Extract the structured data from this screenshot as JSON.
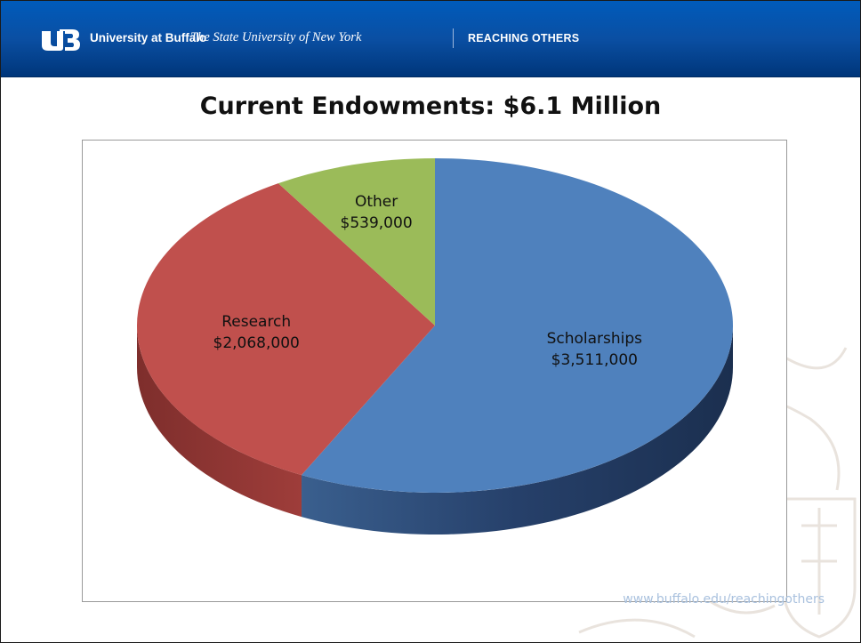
{
  "header": {
    "university": "University at Buffalo",
    "subtitle": "The State University of New York",
    "tagline": "REACHING OTHERS",
    "logo_icon": "ub-logo-icon",
    "background_color": "#005bbb"
  },
  "footer": {
    "url": "www.buffalo.edu/reachingothers"
  },
  "chart_data": {
    "type": "pie",
    "title": "Current Endowments:  $6.1 Million",
    "style": "3d",
    "slices": [
      {
        "name": "Scholarships",
        "label": "$3,511,000",
        "value": 3511000,
        "color": "#4f81bd",
        "side_color": "#2d4b73"
      },
      {
        "name": "Research",
        "label": "$2,068,000",
        "value": 2068000,
        "color": "#c0504d",
        "side_color": "#8a3331"
      },
      {
        "name": "Other",
        "label": "$539,000",
        "value": 539000,
        "color": "#9bbb59",
        "side_color": "#6b8a34"
      }
    ]
  }
}
